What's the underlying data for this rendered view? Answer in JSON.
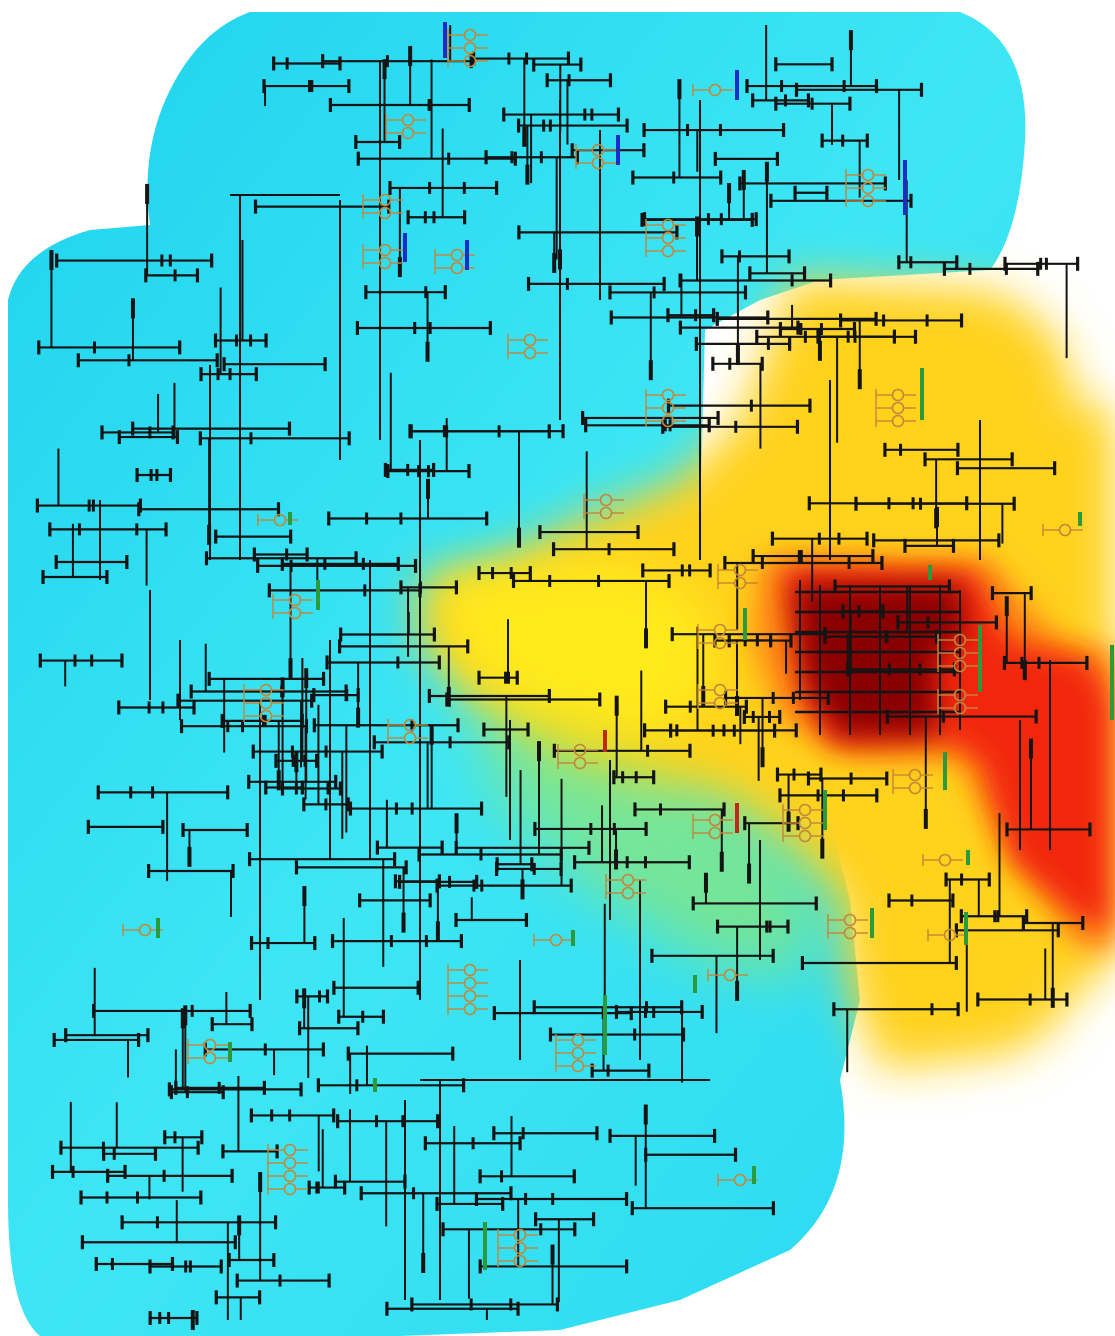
{
  "diagram": {
    "kind": "power-grid one-line diagram with contour overlay",
    "colors": {
      "background": "#ffffff",
      "line": "#141414",
      "generator": "#c4863a",
      "bus_blue": "#1c2cc8",
      "bus_red": "#c02818",
      "bus_green": "#2a9a3c",
      "contour_low": "#28dcf2",
      "contour_mid": "#ffee20",
      "contour_high": "#ff2a10",
      "contour_peak": "#8a0000"
    },
    "legend_visible": false,
    "text_labels": []
  }
}
